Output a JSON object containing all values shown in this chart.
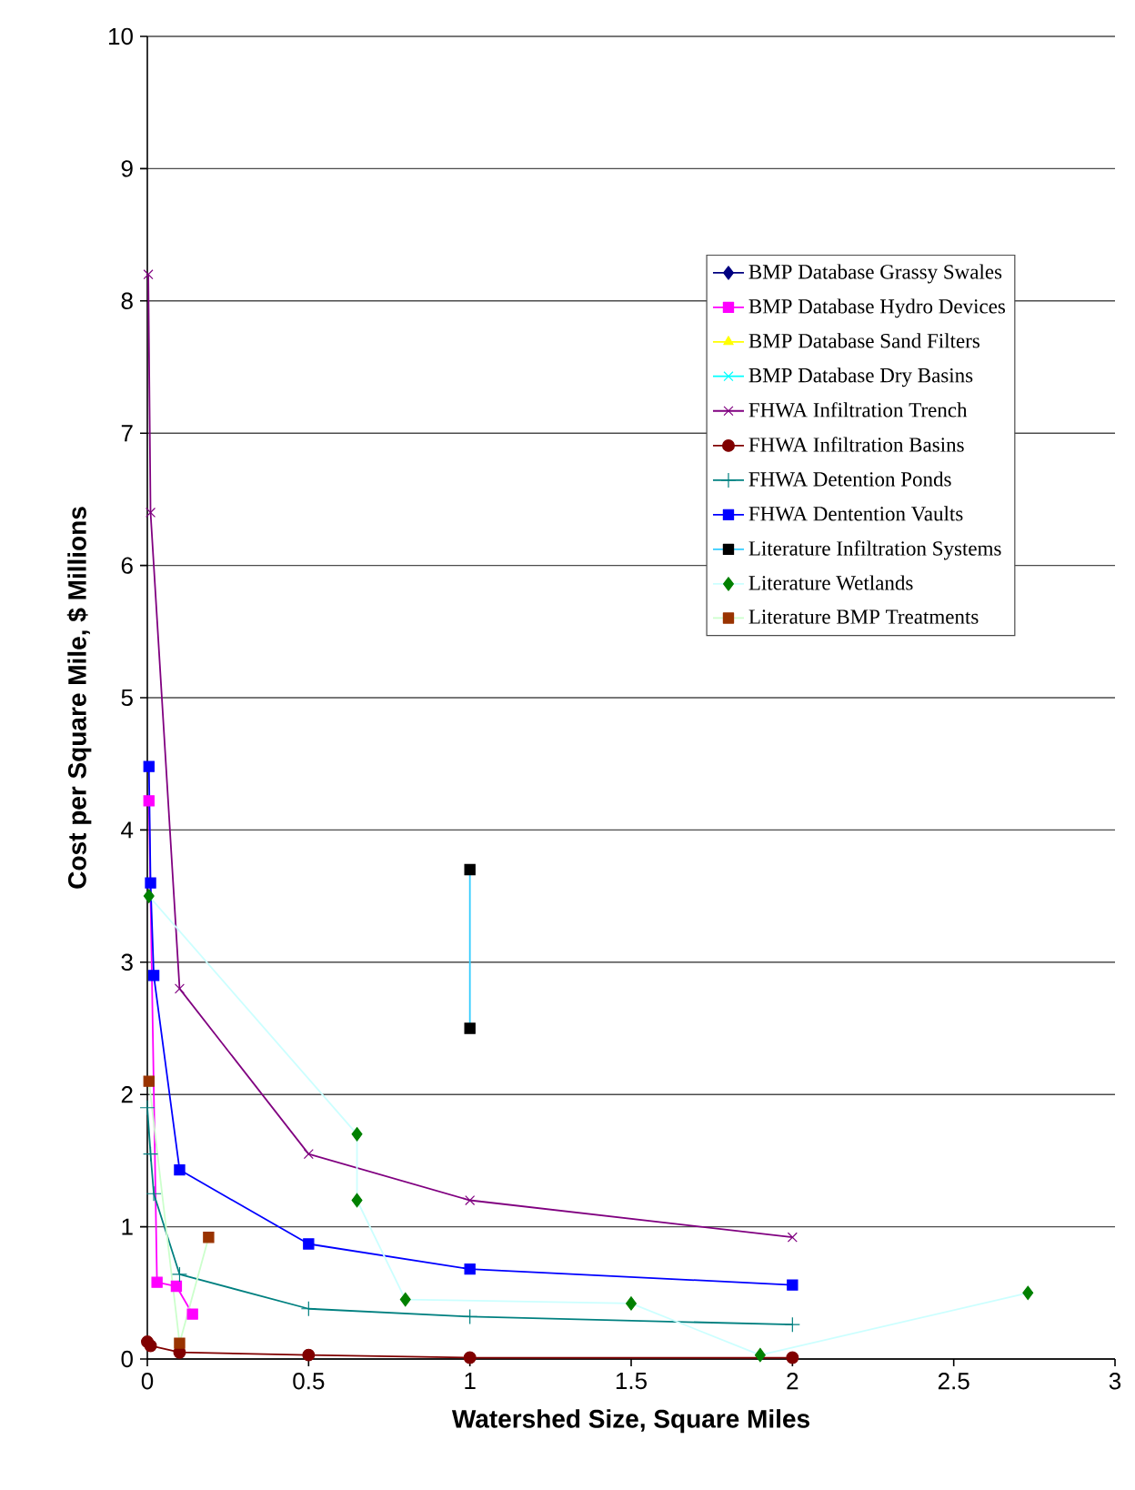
{
  "chart_data": {
    "type": "line",
    "xlabel": "Watershed Size, Square Miles",
    "ylabel": "Cost per Square Mile, $ Millions",
    "xlim": [
      0,
      3
    ],
    "ylim": [
      0,
      10
    ],
    "xticks": [
      0,
      0.5,
      1,
      1.5,
      2,
      2.5,
      3
    ],
    "yticks": [
      0,
      1,
      2,
      3,
      4,
      5,
      6,
      7,
      8,
      9,
      10
    ],
    "grid": "y",
    "legend": "top right",
    "series": [
      {
        "name": "BMP Database Grassy Swales",
        "color": "#000080",
        "marker": "diamond"
      },
      {
        "name": "BMP Database Hydro Devices",
        "color": "#ff00ff",
        "marker": "square",
        "x": [
          0.005,
          0.03,
          0.09,
          0.14
        ],
        "values": [
          4.22,
          0.58,
          0.55,
          0.34
        ]
      },
      {
        "name": "BMP Database Sand Filters",
        "color": "#ffff00",
        "marker": "triangle"
      },
      {
        "name": "BMP Database Dry Basins",
        "color": "#00ffff",
        "marker": "cross"
      },
      {
        "name": "FHWA Infiltration Trench",
        "color": "#800080",
        "marker": "cross",
        "x": [
          0.003,
          0.01,
          0.1,
          0.5,
          1,
          2
        ],
        "values": [
          8.2,
          6.4,
          2.8,
          1.55,
          1.2,
          0.92
        ]
      },
      {
        "name": "FHWA Infiltration Basins",
        "color": "#800000",
        "marker": "circle",
        "x": [
          0,
          0.01,
          0.1,
          0.5,
          1,
          2
        ],
        "values": [
          0.13,
          0.1,
          0.05,
          0.03,
          0.01,
          0.01
        ]
      },
      {
        "name": "FHWA Detention Ponds",
        "color": "#008080",
        "marker": "plus",
        "x": [
          0,
          0.01,
          0.02,
          0.1,
          0.5,
          1,
          2
        ],
        "values": [
          1.9,
          1.55,
          1.25,
          0.64,
          0.38,
          0.32,
          0.26
        ]
      },
      {
        "name": "FHWA Dentention Vaults",
        "color": "#0000ff",
        "marker": "square",
        "x": [
          0.005,
          0.01,
          0.02,
          0.1,
          0.5,
          1,
          2
        ],
        "values": [
          4.48,
          3.6,
          2.9,
          1.43,
          0.87,
          0.68,
          0.56
        ]
      },
      {
        "name": "Literature Infiltration Systems",
        "color": "#33ccff",
        "colors": [
          "#000000",
          "#000000"
        ],
        "marker": "square",
        "x": [
          1,
          1
        ],
        "values": [
          3.7,
          2.5
        ]
      },
      {
        "name": "Literature Wetlands",
        "color": "#ccffff",
        "colors": [
          "#008000",
          "#008000",
          "#008000",
          "#008000",
          "#008000",
          "#008000",
          "#008000"
        ],
        "marker": "diamond",
        "x": [
          0.005,
          0.65,
          0.65,
          0.8,
          1.5,
          1.9,
          2.73
        ],
        "values": [
          3.5,
          1.7,
          1.2,
          0.45,
          0.42,
          0.03,
          0.5
        ]
      },
      {
        "name": "Literature BMP Treatments",
        "color": "#ccffcc",
        "colors": [
          "#993300",
          "#993300",
          "#993300"
        ],
        "marker": "square",
        "x": [
          0.005,
          0.1,
          0.19
        ],
        "values": [
          2.1,
          0.12,
          0.92
        ]
      }
    ]
  }
}
